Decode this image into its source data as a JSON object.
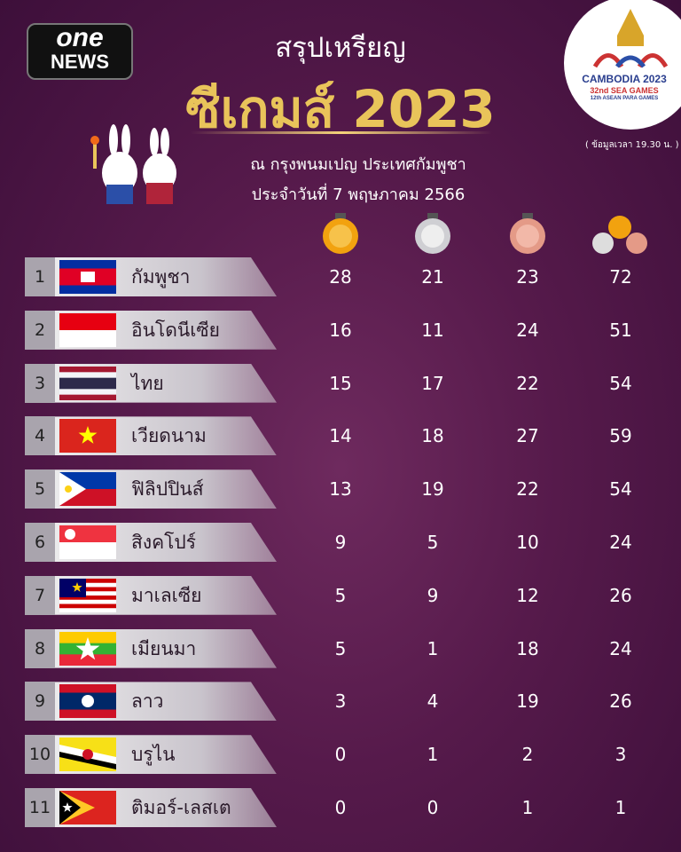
{
  "header": {
    "brand_top": "one",
    "brand_bottom": "NEWS",
    "title": "สรุปเหรียญ",
    "title_main": "ซีเกมส์ 2023",
    "location": "ณ กรุงพนมเปญ ประเทศกัมพูชา",
    "date": "ประจำวันที่ 7 พฤษภาคม 2566"
  },
  "logo": {
    "line1": "CAMBODIA 2023",
    "line2": "32nd SEA GAMES",
    "line3": "12th ASEAN PARA GAMES"
  },
  "note": "( ข้อมูลเวลา 19.30 น. )",
  "table": {
    "rows": [
      [
        1,
        "กัมพูชา",
        28,
        21,
        23,
        72
      ],
      [
        2,
        "อินโดนีเซีย",
        16,
        11,
        24,
        51
      ],
      [
        3,
        "ไทย",
        15,
        17,
        22,
        54
      ],
      [
        4,
        "เวียดนาม",
        14,
        18,
        27,
        59
      ],
      [
        5,
        "ฟิลิปปินส์",
        13,
        19,
        22,
        54
      ],
      [
        6,
        "สิงคโปร์",
        9,
        5,
        10,
        24
      ],
      [
        7,
        "มาเลเซีย",
        5,
        9,
        12,
        26
      ],
      [
        8,
        "เมียนมา",
        5,
        1,
        18,
        24
      ],
      [
        9,
        "ลาว",
        3,
        4,
        19,
        26
      ],
      [
        10,
        "บรูไน",
        0,
        1,
        2,
        3
      ],
      [
        11,
        "ติมอร์-เลสเต",
        0,
        0,
        1,
        1
      ]
    ]
  }
}
